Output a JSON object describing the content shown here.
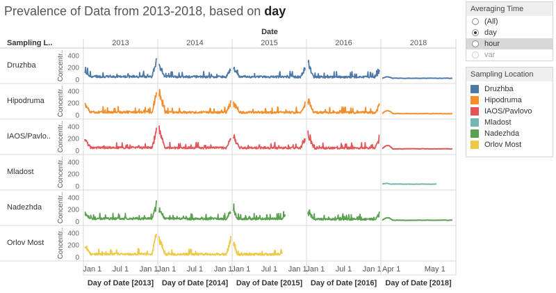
{
  "title": {
    "prefix": "Prevalence of Data from 2013-2018, based on",
    "bold": "day"
  },
  "averaging_time": {
    "title": "Averaging Time",
    "options": [
      {
        "label": "(All)",
        "state": "off"
      },
      {
        "label": "day",
        "state": "selected"
      },
      {
        "label": "hour",
        "state": "highlighted"
      },
      {
        "label": "var",
        "state": "dim"
      }
    ]
  },
  "legend": {
    "title": "Sampling Location",
    "items": [
      {
        "label": "Druzhba",
        "color": "#4e79a7"
      },
      {
        "label": "Hipodruma",
        "color": "#f28e2b"
      },
      {
        "label": "IAOS/Pavlovo",
        "color": "#e15759"
      },
      {
        "label": "Mladost",
        "color": "#76b7b2"
      },
      {
        "label": "Nadezhda",
        "color": "#59a14f"
      },
      {
        "label": "Orlov Most",
        "color": "#edc948"
      }
    ]
  },
  "chart_data": {
    "type": "line",
    "column_header": "Date",
    "row_header": "Sampling L..",
    "y_label": "Concentr..",
    "y_ticks": [
      0,
      200,
      400
    ],
    "ylim": [
      0,
      450
    ],
    "rows": [
      "Druzhba",
      "Hipodruma",
      "IAOS/Pavlo..",
      "Mladost",
      "Nadezhda",
      "Orlov Most"
    ],
    "columns": [
      {
        "year": "2013",
        "footer": "Day of Date [2013]",
        "ticks": [
          "Jan 1",
          "Jul 1",
          "Jan 1"
        ]
      },
      {
        "year": "2014",
        "footer": "Day of Date [2014]",
        "ticks": [
          "Jan 1",
          "Jul 1",
          "Jan 1"
        ]
      },
      {
        "year": "2015",
        "footer": "Day of Date [2015]",
        "ticks": [
          "Jan 1",
          "Jul 1",
          "Jan 1"
        ]
      },
      {
        "year": "2016",
        "footer": "Day of Date [2016]",
        "ticks": [
          "Jan 1",
          "Jul 1",
          "Jan 1"
        ]
      },
      {
        "year": "2018",
        "footer": "Day of Date [2018]",
        "ticks": [
          "Apr 1",
          "May 1"
        ]
      }
    ],
    "series_cells": [
      {
        "row": "Druzhba",
        "year": "2013",
        "start": 0.0,
        "end": 1.0,
        "level": 45,
        "start_peak": 110,
        "end_peak": 380
      },
      {
        "row": "Druzhba",
        "year": "2014",
        "start": 0.0,
        "end": 1.0,
        "level": 40,
        "start_peak": 250,
        "end_peak": 200
      },
      {
        "row": "Druzhba",
        "year": "2015",
        "start": 0.0,
        "end": 1.0,
        "level": 38,
        "start_peak": 190,
        "end_peak": 210
      },
      {
        "row": "Druzhba",
        "year": "2016",
        "start": 0.0,
        "end": 1.0,
        "level": 35,
        "start_peak": 300,
        "end_peak": 120
      },
      {
        "row": "Druzhba",
        "year": "2018",
        "start": 0.0,
        "end": 0.97,
        "level": 18,
        "start_peak": 40,
        "end_peak": 20
      },
      {
        "row": "Hipodruma",
        "year": "2013",
        "start": 0.0,
        "end": 1.0,
        "level": 45,
        "start_peak": 150,
        "end_peak": 380
      },
      {
        "row": "Hipodruma",
        "year": "2014",
        "start": 0.0,
        "end": 1.0,
        "level": 40,
        "start_peak": 400,
        "end_peak": 250
      },
      {
        "row": "Hipodruma",
        "year": "2015",
        "start": 0.0,
        "end": 1.0,
        "level": 38,
        "start_peak": 220,
        "end_peak": 180
      },
      {
        "row": "Hipodruma",
        "year": "2016",
        "start": 0.0,
        "end": 1.0,
        "level": 35,
        "start_peak": 290,
        "end_peak": 160
      },
      {
        "row": "Hipodruma",
        "year": "2018",
        "start": 0.0,
        "end": 0.97,
        "level": 20,
        "start_peak": 70,
        "end_peak": 25
      },
      {
        "row": "IAOS/Pavlo..",
        "year": "2013",
        "start": 0.0,
        "end": 1.0,
        "level": 45,
        "start_peak": 200,
        "end_peak": 330
      },
      {
        "row": "IAOS/Pavlo..",
        "year": "2014",
        "start": 0.0,
        "end": 1.0,
        "level": 40,
        "start_peak": 380,
        "end_peak": 220
      },
      {
        "row": "IAOS/Pavlo..",
        "year": "2015",
        "start": 0.0,
        "end": 1.0,
        "level": 38,
        "start_peak": 240,
        "end_peak": 200
      },
      {
        "row": "IAOS/Pavlo..",
        "year": "2016",
        "start": 0.0,
        "end": 1.0,
        "level": 35,
        "start_peak": 310,
        "end_peak": 200
      },
      {
        "row": "IAOS/Pavlo..",
        "year": "2018",
        "start": 0.0,
        "end": 0.97,
        "level": 25,
        "start_peak": 80,
        "end_peak": 30
      },
      {
        "row": "Mladost",
        "year": "2018",
        "start": 0.0,
        "end": 0.75,
        "level": 28,
        "start_peak": 40,
        "end_peak": 30
      },
      {
        "row": "Nadezhda",
        "year": "2013",
        "start": 0.0,
        "end": 1.0,
        "level": 45,
        "start_peak": 120,
        "end_peak": 300
      },
      {
        "row": "Nadezhda",
        "year": "2014",
        "start": 0.0,
        "end": 1.0,
        "level": 40,
        "start_peak": 200,
        "end_peak": 190
      },
      {
        "row": "Nadezhda",
        "year": "2015",
        "start": 0.0,
        "end": 0.72,
        "level": 38,
        "start_peak": 180,
        "end_peak": 60
      },
      {
        "row": "Nadezhda",
        "year": "2016",
        "start": 0.0,
        "end": 1.0,
        "level": 30,
        "start_peak": 150,
        "end_peak": 120
      },
      {
        "row": "Nadezhda",
        "year": "2018",
        "start": 0.0,
        "end": 0.97,
        "level": 18,
        "start_peak": 60,
        "end_peak": 22
      },
      {
        "row": "Orlov Most",
        "year": "2013",
        "start": 0.0,
        "end": 1.0,
        "level": 45,
        "start_peak": 190,
        "end_peak": 420
      },
      {
        "row": "Orlov Most",
        "year": "2014",
        "start": 0.0,
        "end": 1.0,
        "level": 42,
        "start_peak": 380,
        "end_peak": 300
      },
      {
        "row": "Orlov Most",
        "year": "2015",
        "start": 0.0,
        "end": 0.68,
        "level": 40,
        "start_peak": 260,
        "end_peak": 60
      }
    ]
  }
}
